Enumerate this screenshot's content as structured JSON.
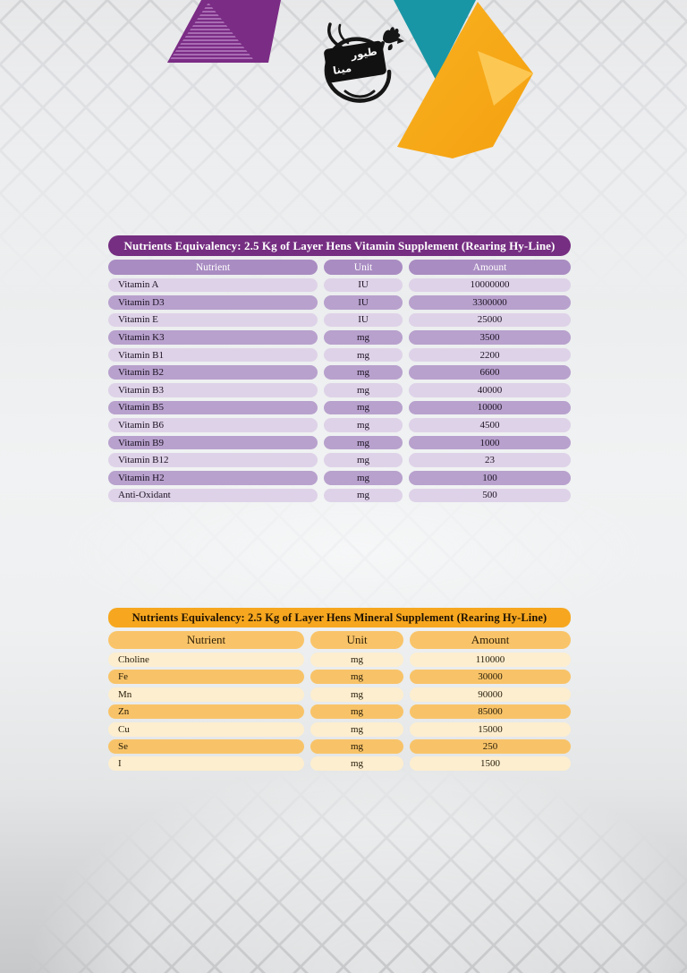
{
  "logo": {
    "arabic_top": "طيور",
    "arabic_bottom": "مينا"
  },
  "decor": {
    "purple_triangle": "#7b2c85",
    "teal_triangle": "#1996a5",
    "orange_triangle": "#f7ab1d"
  },
  "vitamin_table": {
    "title": "Nutrients Equivalency: 2.5 Kg of Layer Hens Vitamin Supplement (Rearing Hy-Line)",
    "columns": [
      "Nutrient",
      "Unit",
      "Amount"
    ],
    "rows": [
      [
        "Vitamin A",
        "IU",
        "10000000"
      ],
      [
        "Vitamin D3",
        "IU",
        "3300000"
      ],
      [
        "Vitamin E",
        "IU",
        "25000"
      ],
      [
        "Vitamin K3",
        "mg",
        "3500"
      ],
      [
        "Vitamin B1",
        "mg",
        "2200"
      ],
      [
        "Vitamin B2",
        "mg",
        "6600"
      ],
      [
        "Vitamin B3",
        "mg",
        "40000"
      ],
      [
        "Vitamin B5",
        "mg",
        "10000"
      ],
      [
        "Vitamin B6",
        "mg",
        "4500"
      ],
      [
        "Vitamin B9",
        "mg",
        "1000"
      ],
      [
        "Vitamin B12",
        "mg",
        "23"
      ],
      [
        "Vitamin H2",
        "mg",
        "100"
      ],
      [
        "Anti-Oxidant",
        "mg",
        "500"
      ]
    ],
    "colors": {
      "title_bg": "#752e81",
      "header_bg": "#a98cc2",
      "row_light": "#ded2e8",
      "row_dark": "#b8a1cd"
    }
  },
  "mineral_table": {
    "title": "Nutrients Equivalency: 2.5 Kg of Layer Hens Mineral Supplement (Rearing Hy-Line)",
    "columns": [
      "Nutrient",
      "Unit",
      "Amount"
    ],
    "rows": [
      [
        "Choline",
        "mg",
        "110000"
      ],
      [
        "Fe",
        "mg",
        "30000"
      ],
      [
        "Mn",
        "mg",
        "90000"
      ],
      [
        "Zn",
        "mg",
        "85000"
      ],
      [
        "Cu",
        "mg",
        "15000"
      ],
      [
        "Se",
        "mg",
        "250"
      ],
      [
        "I",
        "mg",
        "1500"
      ]
    ],
    "colors": {
      "title_bg": "#f6a71f",
      "header_bg": "#f9c469",
      "row_light": "#fdeecf",
      "row_dark": "#f8c368"
    }
  }
}
